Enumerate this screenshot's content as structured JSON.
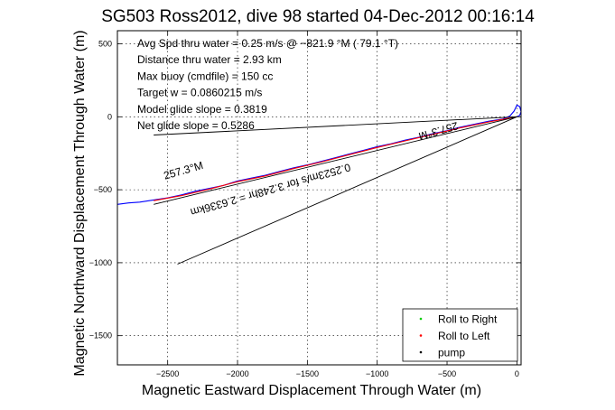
{
  "chart_data": {
    "type": "line",
    "title": "SG503 Ross2012, dive 98 started 04-Dec-2012 00:16:14",
    "xlabel": "Magnetic Eastward Displacement Through Water (m)",
    "ylabel": "Magnetic Northward Displacement Through Water (m)",
    "xlim": [
      -2860,
      30
    ],
    "ylim": [
      -1700,
      590
    ],
    "xticks": [
      -2500,
      -2000,
      -1500,
      -1000,
      -500,
      0
    ],
    "yticks": [
      500,
      0,
      -500,
      -1000,
      -1500
    ],
    "grid": true,
    "stats": [
      "Avg Spd thru water =  0.25 m/s @ −821.9   °M ( 79.1 °T)",
      "Distance thru water = 2.93 km",
      "Max buoy (cmdfile) = 150 cc",
      "Target w = 0.0860215 m/s",
      "Model glide slope = 0.3819",
      "Net glide slope = 0.5286"
    ],
    "legend": {
      "placement": "bottom-right",
      "entries": [
        {
          "label": "Roll to Right",
          "color": "#00cc00"
        },
        {
          "label": "Roll to Left",
          "color": "#ff0000"
        },
        {
          "label": "pump",
          "color": "#000000"
        }
      ]
    },
    "annotations": [
      {
        "text": "257.3°M",
        "x": -2520,
        "y": -430,
        "rotation": -16
      },
      {
        "text": "0.2523m/s for 3.248hr = 2.6336km",
        "x": -1200,
        "y": -320,
        "rotation": 164
      },
      {
        "text": "257.3°M",
        "x": -430,
        "y": -35,
        "rotation": 164
      }
    ],
    "series": [
      {
        "color": "#0000ff",
        "x": [
          -2860,
          -2780,
          -2700,
          -2600,
          -2500,
          -2400,
          -2300,
          -2200,
          -2100,
          -2000,
          -1900,
          -1800,
          -1700,
          -1600,
          -1500,
          -1400,
          -1300,
          -1200,
          -1100,
          -1000,
          -900,
          -800,
          -700,
          -600,
          -500,
          -400,
          -300,
          -200,
          -100,
          -50,
          -20,
          0,
          20,
          30,
          20,
          0
        ],
        "y": [
          -600,
          -590,
          -585,
          -570,
          -555,
          -535,
          -510,
          -490,
          -470,
          -440,
          -420,
          -400,
          -375,
          -350,
          -330,
          -305,
          -280,
          -255,
          -230,
          -205,
          -185,
          -160,
          -140,
          -115,
          -95,
          -70,
          -50,
          -30,
          -15,
          5,
          40,
          80,
          70,
          35,
          10,
          0
        ]
      },
      {
        "color": "#ff0000",
        "x": [
          -2600,
          -2400,
          -2200,
          -2000,
          -1800,
          -1600,
          -1400,
          -1200,
          -1000,
          -800,
          -600,
          -400,
          -200,
          0
        ],
        "y": [
          -575,
          -540,
          -495,
          -445,
          -405,
          -355,
          -310,
          -260,
          -210,
          -165,
          -120,
          -75,
          -35,
          0
        ]
      },
      {
        "color": "#000000",
        "x": [
          -2600,
          0
        ],
        "y": [
          -125,
          0
        ]
      },
      {
        "color": "#000000",
        "x": [
          -2430,
          0
        ],
        "y": [
          -1010,
          0
        ]
      },
      {
        "color": "#000000",
        "x": [
          -2600,
          0
        ],
        "y": [
          -600,
          0
        ]
      }
    ]
  }
}
